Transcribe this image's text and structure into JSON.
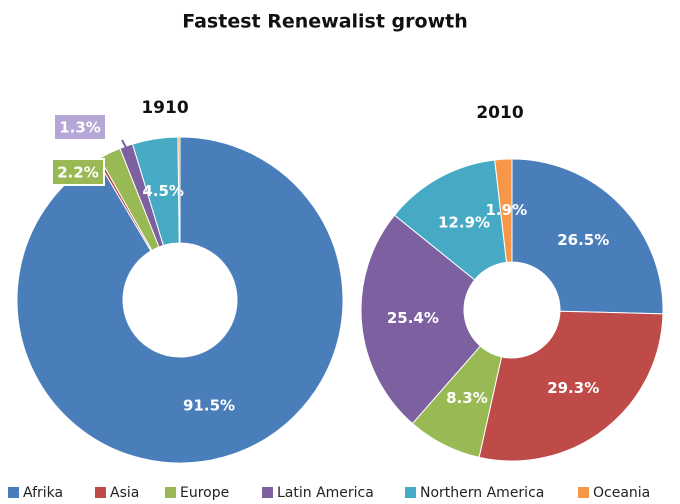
{
  "chart_data": {
    "type": "pie",
    "title": "Fastest Renewalist growth",
    "categories": [
      "Afrika",
      "Asia",
      "Europe",
      "Latin America",
      "Northern America",
      "Oceania"
    ],
    "colors": [
      "#4a7ebb",
      "#be4b48",
      "#98b954",
      "#7d60a0",
      "#46aac5",
      "#f79646"
    ],
    "series": [
      {
        "name": "1910",
        "values": [
          91.5,
          0.3,
          2.2,
          1.3,
          4.5,
          0.2
        ],
        "value_labels": [
          "91.5%",
          null,
          "2.2%",
          "1.3%",
          "4.5%",
          null
        ]
      },
      {
        "name": "2010",
        "values": [
          26.5,
          29.3,
          8.3,
          25.4,
          12.9,
          1.9
        ],
        "value_labels": [
          "26.5%",
          "29.3%",
          "8.3%",
          "25.4%",
          "12.9%",
          "1.9%"
        ]
      }
    ]
  }
}
